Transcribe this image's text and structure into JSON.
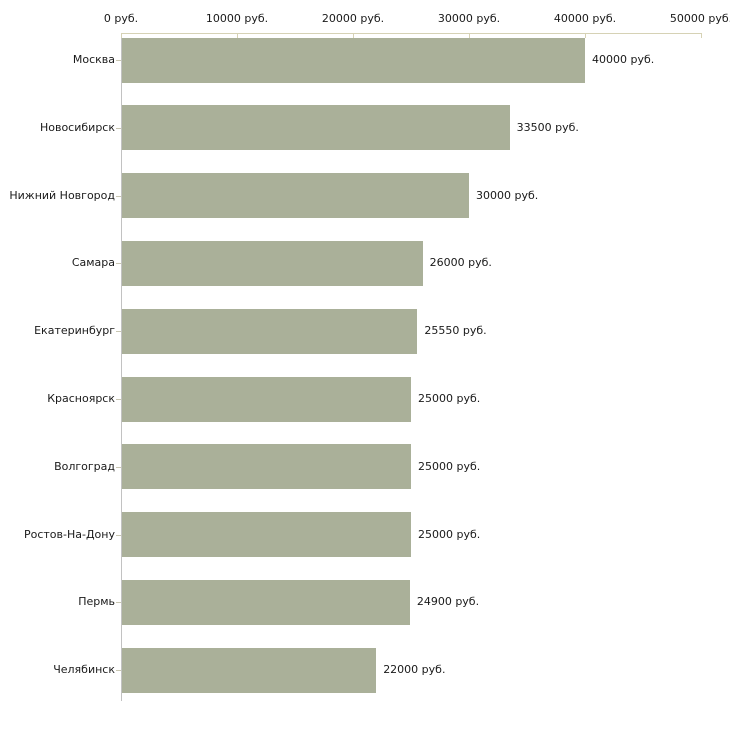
{
  "chart_data": {
    "type": "bar",
    "orientation": "horizontal",
    "title": "",
    "xlabel": "",
    "ylabel": "",
    "grid": false,
    "legend": false,
    "categories": [
      "Москва",
      "Новосибирск",
      "Нижний Новгород",
      "Самара",
      "Екатеринбург",
      "Красноярск",
      "Волгоград",
      "Ростов-На-Дону",
      "Пермь",
      "Челябинск"
    ],
    "values": [
      40000,
      33500,
      30000,
      26000,
      25550,
      25000,
      25000,
      25000,
      24900,
      22000
    ],
    "value_labels": [
      "40000 руб.",
      "33500 руб.",
      "30000 руб.",
      "26000 руб.",
      "25550 руб.",
      "25000 руб.",
      "25000 руб.",
      "25000 руб.",
      "24900 руб.",
      "22000 руб."
    ],
    "x_axis": {
      "position": "top",
      "min": 0,
      "max": 50000,
      "ticks": [
        0,
        10000,
        20000,
        30000,
        40000,
        50000
      ],
      "tick_labels": [
        "0 руб.",
        "10000 руб.",
        "20000 руб.",
        "30000 руб.",
        "40000 руб.",
        "50000 руб."
      ]
    },
    "colors": {
      "bar": "#aab099",
      "x_axis_line": "#d6d2b5",
      "y_axis_line": "#c2c2c2",
      "category_tick": "#c9c6b2",
      "text": "#1a1a1a",
      "background": "#ffffff"
    }
  }
}
